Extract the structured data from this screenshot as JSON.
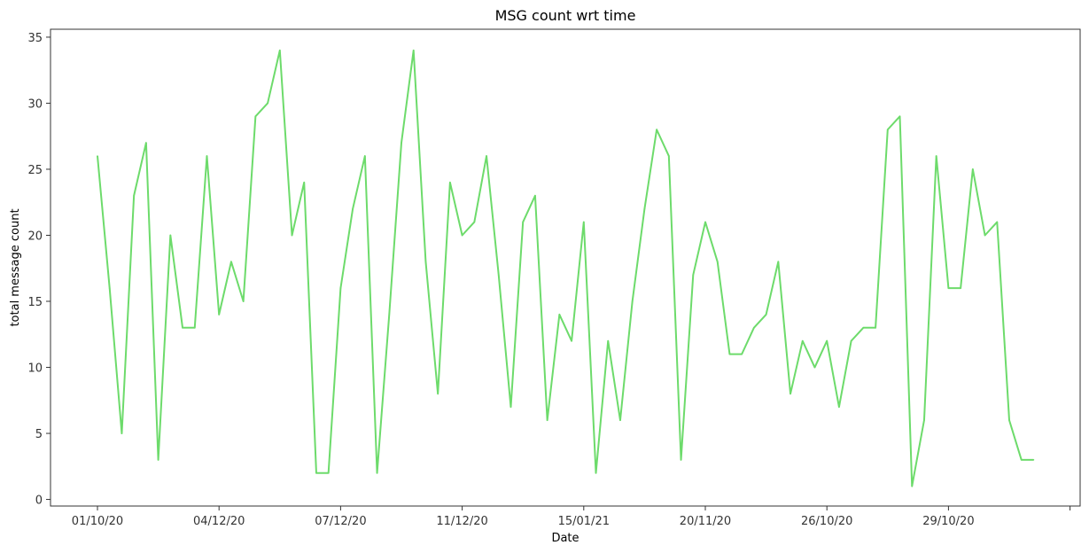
{
  "chart_data": {
    "type": "line",
    "title": "MSG count wrt time",
    "xlabel": "Date",
    "ylabel": "total message count",
    "x_tick_labels": [
      "01/10/20",
      "04/12/20",
      "07/12/20",
      "11/12/20",
      "15/01/21",
      "20/11/20",
      "26/10/20",
      "29/10/20",
      ""
    ],
    "ylim": [
      -0.5,
      35.6
    ],
    "y_ticks": [
      0,
      5,
      10,
      15,
      20,
      25,
      30,
      35
    ],
    "grid": false,
    "legend": "none",
    "series": [
      {
        "color": "#6ddb6b",
        "values": [
          26,
          16,
          5,
          23,
          27,
          3,
          20,
          13,
          13,
          26,
          14,
          18,
          15,
          29,
          30,
          34,
          20,
          24,
          2,
          2,
          16,
          22,
          26,
          2,
          14,
          27,
          34,
          18,
          8,
          24,
          20,
          21,
          26,
          17,
          7,
          21,
          23,
          6,
          14,
          12,
          21,
          2,
          12,
          6,
          15,
          22,
          28,
          26,
          3,
          17,
          21,
          18,
          11,
          11,
          13,
          14,
          18,
          8,
          12,
          10,
          12,
          7,
          12,
          13,
          13,
          28,
          29,
          1,
          6,
          26,
          16,
          16,
          25,
          20,
          21,
          6,
          3,
          3
        ]
      }
    ]
  }
}
